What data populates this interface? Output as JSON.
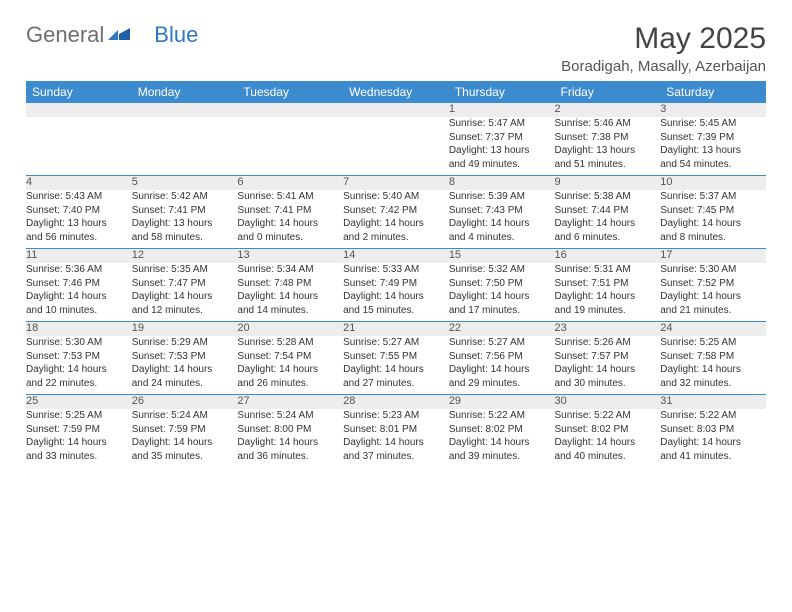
{
  "logo": {
    "text1": "General",
    "text2": "Blue"
  },
  "title": "May 2025",
  "location": "Boradigah, Masally, Azerbaijan",
  "colors": {
    "header_bg": "#3c8bce",
    "header_text": "#ffffff",
    "daynum_bg": "#ededed",
    "rule": "#3c8bce",
    "body_text": "#333333"
  },
  "day_headers": [
    "Sunday",
    "Monday",
    "Tuesday",
    "Wednesday",
    "Thursday",
    "Friday",
    "Saturday"
  ],
  "weeks": [
    {
      "nums": [
        "",
        "",
        "",
        "",
        "1",
        "2",
        "3"
      ],
      "cells": [
        null,
        null,
        null,
        null,
        {
          "sunrise": "5:47 AM",
          "sunset": "7:37 PM",
          "dl1": "Daylight: 13 hours",
          "dl2": "and 49 minutes."
        },
        {
          "sunrise": "5:46 AM",
          "sunset": "7:38 PM",
          "dl1": "Daylight: 13 hours",
          "dl2": "and 51 minutes."
        },
        {
          "sunrise": "5:45 AM",
          "sunset": "7:39 PM",
          "dl1": "Daylight: 13 hours",
          "dl2": "and 54 minutes."
        }
      ]
    },
    {
      "nums": [
        "4",
        "5",
        "6",
        "7",
        "8",
        "9",
        "10"
      ],
      "cells": [
        {
          "sunrise": "5:43 AM",
          "sunset": "7:40 PM",
          "dl1": "Daylight: 13 hours",
          "dl2": "and 56 minutes."
        },
        {
          "sunrise": "5:42 AM",
          "sunset": "7:41 PM",
          "dl1": "Daylight: 13 hours",
          "dl2": "and 58 minutes."
        },
        {
          "sunrise": "5:41 AM",
          "sunset": "7:41 PM",
          "dl1": "Daylight: 14 hours",
          "dl2": "and 0 minutes."
        },
        {
          "sunrise": "5:40 AM",
          "sunset": "7:42 PM",
          "dl1": "Daylight: 14 hours",
          "dl2": "and 2 minutes."
        },
        {
          "sunrise": "5:39 AM",
          "sunset": "7:43 PM",
          "dl1": "Daylight: 14 hours",
          "dl2": "and 4 minutes."
        },
        {
          "sunrise": "5:38 AM",
          "sunset": "7:44 PM",
          "dl1": "Daylight: 14 hours",
          "dl2": "and 6 minutes."
        },
        {
          "sunrise": "5:37 AM",
          "sunset": "7:45 PM",
          "dl1": "Daylight: 14 hours",
          "dl2": "and 8 minutes."
        }
      ]
    },
    {
      "nums": [
        "11",
        "12",
        "13",
        "14",
        "15",
        "16",
        "17"
      ],
      "cells": [
        {
          "sunrise": "5:36 AM",
          "sunset": "7:46 PM",
          "dl1": "Daylight: 14 hours",
          "dl2": "and 10 minutes."
        },
        {
          "sunrise": "5:35 AM",
          "sunset": "7:47 PM",
          "dl1": "Daylight: 14 hours",
          "dl2": "and 12 minutes."
        },
        {
          "sunrise": "5:34 AM",
          "sunset": "7:48 PM",
          "dl1": "Daylight: 14 hours",
          "dl2": "and 14 minutes."
        },
        {
          "sunrise": "5:33 AM",
          "sunset": "7:49 PM",
          "dl1": "Daylight: 14 hours",
          "dl2": "and 15 minutes."
        },
        {
          "sunrise": "5:32 AM",
          "sunset": "7:50 PM",
          "dl1": "Daylight: 14 hours",
          "dl2": "and 17 minutes."
        },
        {
          "sunrise": "5:31 AM",
          "sunset": "7:51 PM",
          "dl1": "Daylight: 14 hours",
          "dl2": "and 19 minutes."
        },
        {
          "sunrise": "5:30 AM",
          "sunset": "7:52 PM",
          "dl1": "Daylight: 14 hours",
          "dl2": "and 21 minutes."
        }
      ]
    },
    {
      "nums": [
        "18",
        "19",
        "20",
        "21",
        "22",
        "23",
        "24"
      ],
      "cells": [
        {
          "sunrise": "5:30 AM",
          "sunset": "7:53 PM",
          "dl1": "Daylight: 14 hours",
          "dl2": "and 22 minutes."
        },
        {
          "sunrise": "5:29 AM",
          "sunset": "7:53 PM",
          "dl1": "Daylight: 14 hours",
          "dl2": "and 24 minutes."
        },
        {
          "sunrise": "5:28 AM",
          "sunset": "7:54 PM",
          "dl1": "Daylight: 14 hours",
          "dl2": "and 26 minutes."
        },
        {
          "sunrise": "5:27 AM",
          "sunset": "7:55 PM",
          "dl1": "Daylight: 14 hours",
          "dl2": "and 27 minutes."
        },
        {
          "sunrise": "5:27 AM",
          "sunset": "7:56 PM",
          "dl1": "Daylight: 14 hours",
          "dl2": "and 29 minutes."
        },
        {
          "sunrise": "5:26 AM",
          "sunset": "7:57 PM",
          "dl1": "Daylight: 14 hours",
          "dl2": "and 30 minutes."
        },
        {
          "sunrise": "5:25 AM",
          "sunset": "7:58 PM",
          "dl1": "Daylight: 14 hours",
          "dl2": "and 32 minutes."
        }
      ]
    },
    {
      "nums": [
        "25",
        "26",
        "27",
        "28",
        "29",
        "30",
        "31"
      ],
      "cells": [
        {
          "sunrise": "5:25 AM",
          "sunset": "7:59 PM",
          "dl1": "Daylight: 14 hours",
          "dl2": "and 33 minutes."
        },
        {
          "sunrise": "5:24 AM",
          "sunset": "7:59 PM",
          "dl1": "Daylight: 14 hours",
          "dl2": "and 35 minutes."
        },
        {
          "sunrise": "5:24 AM",
          "sunset": "8:00 PM",
          "dl1": "Daylight: 14 hours",
          "dl2": "and 36 minutes."
        },
        {
          "sunrise": "5:23 AM",
          "sunset": "8:01 PM",
          "dl1": "Daylight: 14 hours",
          "dl2": "and 37 minutes."
        },
        {
          "sunrise": "5:22 AM",
          "sunset": "8:02 PM",
          "dl1": "Daylight: 14 hours",
          "dl2": "and 39 minutes."
        },
        {
          "sunrise": "5:22 AM",
          "sunset": "8:02 PM",
          "dl1": "Daylight: 14 hours",
          "dl2": "and 40 minutes."
        },
        {
          "sunrise": "5:22 AM",
          "sunset": "8:03 PM",
          "dl1": "Daylight: 14 hours",
          "dl2": "and 41 minutes."
        }
      ]
    }
  ],
  "labels": {
    "sunrise": "Sunrise: ",
    "sunset": "Sunset: "
  }
}
